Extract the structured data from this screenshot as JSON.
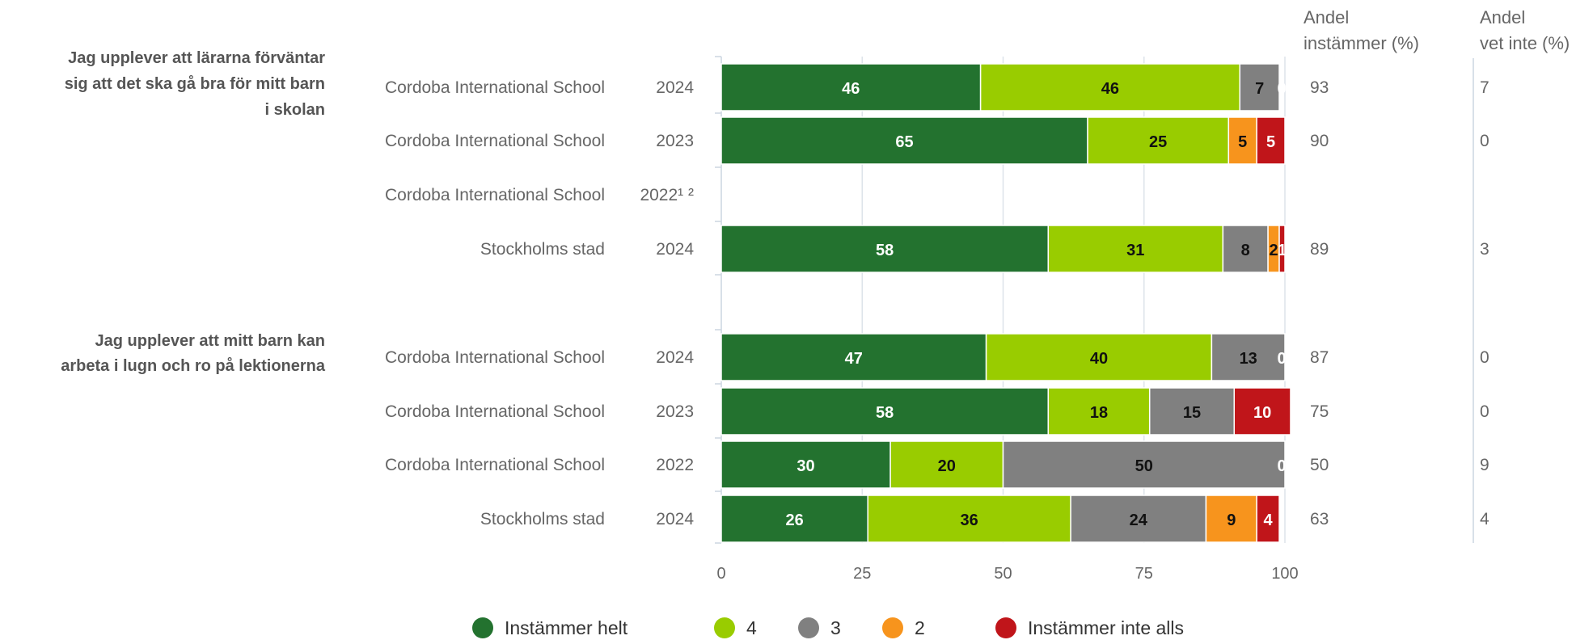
{
  "chart_data": {
    "type": "bar",
    "orientation": "horizontal",
    "stacked": true,
    "xlim": [
      0,
      100
    ],
    "x_ticks": [
      "0",
      "25",
      "50",
      "75",
      "100"
    ],
    "legend_position": "bottom",
    "grid": true,
    "categories_order": [
      "Instämmer helt",
      "4",
      "3",
      "2",
      "Instämmer inte alls"
    ],
    "colors": [
      "#23722f",
      "#99cc00",
      "#808080",
      "#f7941d",
      "#c0151a"
    ],
    "label_colors": [
      "#ffffff",
      "#111111",
      "#111111",
      "#111111",
      "#ffffff"
    ],
    "column_headers": {
      "agree": [
        "Andel",
        "instämmer (%)"
      ],
      "dontknow": [
        "Andel",
        "vet inte (%)"
      ]
    },
    "groups": [
      {
        "question": [
          "Jag upplever att lärarna förväntar",
          "sig att det ska gå bra för mitt barn",
          "i skolan"
        ],
        "rows": [
          {
            "school": "Cordoba International School",
            "year": "2024",
            "values": [
              46,
              46,
              7,
              0,
              0
            ],
            "labels": [
              "46",
              "46",
              "7",
              "0",
              ""
            ],
            "agree": "93",
            "dontknow": "7"
          },
          {
            "school": "Cordoba International School",
            "year": "2023",
            "values": [
              65,
              25,
              0,
              5,
              5
            ],
            "labels": [
              "65",
              "25",
              "0",
              "5",
              "5"
            ],
            "agree": "90",
            "dontknow": "0"
          },
          {
            "school": "Cordoba International School",
            "year": "2022¹ ²",
            "values": [],
            "labels": [],
            "agree": "",
            "dontknow": ""
          },
          {
            "school": "Stockholms stad",
            "year": "2024",
            "values": [
              58,
              31,
              8,
              2,
              1
            ],
            "labels": [
              "58",
              "31",
              "8",
              "2",
              "1"
            ],
            "agree": "89",
            "dontknow": "3"
          }
        ]
      },
      {
        "question": [
          "Jag upplever att mitt barn kan",
          "arbeta i lugn och ro på lektionerna"
        ],
        "rows": [
          {
            "school": "Cordoba International School",
            "year": "2024",
            "values": [
              47,
              40,
              13,
              0,
              0
            ],
            "labels": [
              "47",
              "40",
              "13",
              "0",
              ""
            ],
            "agree": "87",
            "dontknow": "0"
          },
          {
            "school": "Cordoba International School",
            "year": "2023",
            "values": [
              58,
              18,
              15,
              0,
              10
            ],
            "labels": [
              "58",
              "18",
              "15",
              "0",
              "10"
            ],
            "agree": "75",
            "dontknow": "0"
          },
          {
            "school": "Cordoba International School",
            "year": "2022",
            "values": [
              30,
              20,
              50,
              0,
              0
            ],
            "labels": [
              "30",
              "20",
              "50",
              "0",
              ""
            ],
            "agree": "50",
            "dontknow": "9"
          },
          {
            "school": "Stockholms stad",
            "year": "2024",
            "values": [
              26,
              36,
              24,
              9,
              4
            ],
            "labels": [
              "26",
              "36",
              "24",
              "9",
              "4"
            ],
            "agree": "63",
            "dontknow": "4"
          }
        ]
      }
    ]
  }
}
